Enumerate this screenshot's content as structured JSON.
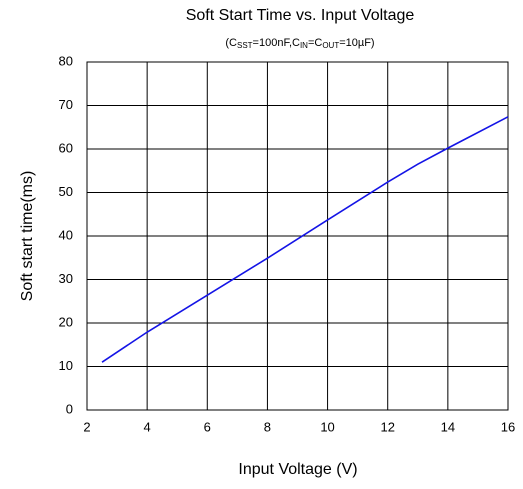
{
  "chart_data": {
    "type": "line",
    "title": "Soft Start Time vs. Input Voltage",
    "subtitle": [
      "(C",
      "SST",
      "=100nF,C",
      "IN",
      "=C",
      "OUT",
      "=10µF)"
    ],
    "x_label": "Input Voltage (V)",
    "y_label": "Soft start time(ms)",
    "x": [
      2.5,
      4,
      6,
      8,
      10,
      12,
      13,
      14,
      16
    ],
    "series": [
      {
        "name": null,
        "color": "#1414e6",
        "values": [
          11,
          17.9,
          26.4,
          34.9,
          43.7,
          52.4,
          56.5,
          60.2,
          67.4
        ]
      }
    ],
    "xlim": [
      2,
      16
    ],
    "xticks": [
      2,
      4,
      6,
      8,
      10,
      12,
      14,
      16
    ],
    "ylim": [
      0,
      80
    ],
    "yticks": [
      0,
      10,
      20,
      30,
      40,
      50,
      60,
      70,
      80
    ],
    "grid": true
  }
}
